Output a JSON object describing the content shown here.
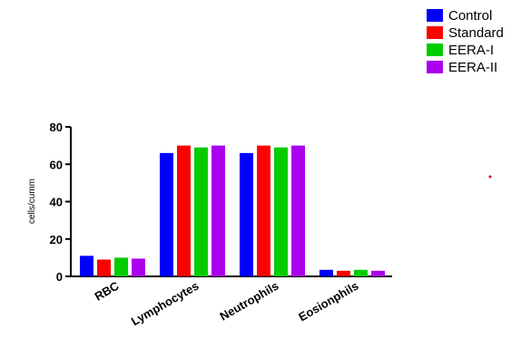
{
  "chart_data": {
    "type": "bar",
    "title": "",
    "xlabel": "",
    "ylabel": "cells/cumm",
    "ylim": [
      0,
      80
    ],
    "yticks": [
      0,
      20,
      40,
      60,
      80
    ],
    "categories": [
      "RBC",
      "Lymphocytes",
      "Neutrophils",
      "Eosionphils"
    ],
    "series": [
      {
        "name": "Control",
        "color": "#0000ff",
        "values": [
          11,
          66,
          66,
          3.5
        ]
      },
      {
        "name": "Standard",
        "color": "#ff0000",
        "values": [
          9,
          70,
          70,
          3
        ]
      },
      {
        "name": "EERA-I",
        "color": "#00cc00",
        "values": [
          10,
          69,
          69,
          3.5
        ]
      },
      {
        "name": "EERA-II",
        "color": "#aa00ee",
        "values": [
          9.5,
          70,
          70,
          3
        ]
      }
    ],
    "grid": false,
    "legend_position": "top-right"
  }
}
